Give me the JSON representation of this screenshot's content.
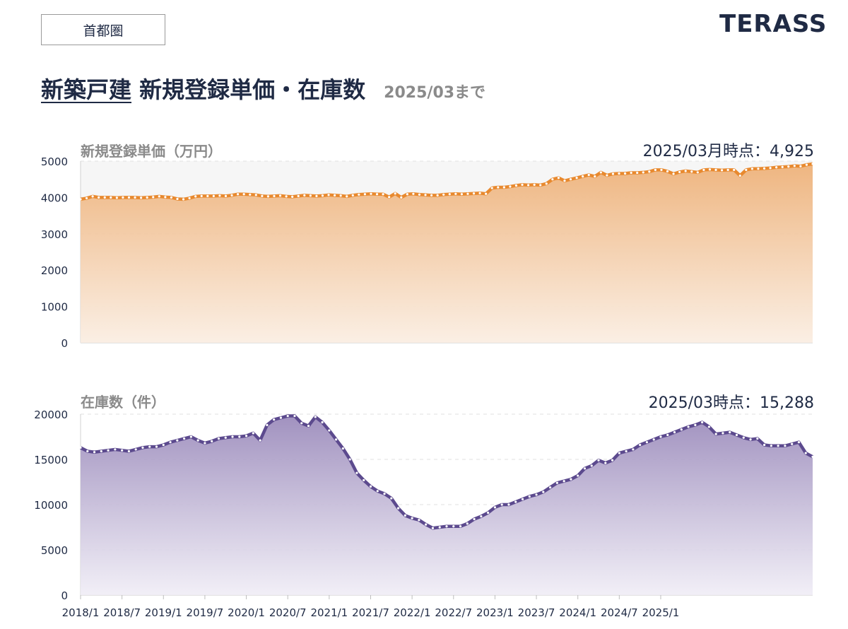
{
  "header": {
    "region": "首都圏",
    "logo": "TERASS",
    "title_underlined": "新築戸建",
    "title_rest": " 新規登録単価・在庫数",
    "subtitle": "2025/03まで"
  },
  "colors": {
    "price_line": "#e8892e",
    "price_fill": "#f2c08e",
    "stock_line": "#5c4a8e",
    "stock_fill": "#a898c4",
    "text_dark": "#1f2a44",
    "text_gray": "#8a8a8a"
  },
  "chart_data": [
    {
      "type": "area",
      "title": "新規登録単価（万円）",
      "stat": "2025/03月時点：4,925",
      "ylim": [
        0,
        5000
      ],
      "yticks": [
        "0",
        "1000",
        "2000",
        "3000",
        "4000",
        "5000"
      ],
      "grid": true,
      "x_start": "2018/1",
      "x_end": "2025/3",
      "values": [
        3950,
        3980,
        4030,
        4000,
        4000,
        4000,
        3990,
        4000,
        4000,
        4000,
        3990,
        4000,
        4010,
        4030,
        4010,
        4000,
        3960,
        3950,
        3980,
        4030,
        4040,
        4040,
        4040,
        4050,
        4040,
        4060,
        4090,
        4090,
        4080,
        4070,
        4040,
        4030,
        4040,
        4050,
        4030,
        4020,
        4040,
        4060,
        4050,
        4040,
        4050,
        4070,
        4060,
        4050,
        4030,
        4060,
        4080,
        4090,
        4100,
        4090,
        4090,
        4010,
        4110,
        4000,
        4090,
        4100,
        4080,
        4070,
        4060,
        4060,
        4080,
        4090,
        4100,
        4090,
        4100,
        4110,
        4120,
        4100,
        4260,
        4280,
        4280,
        4300,
        4330,
        4350,
        4340,
        4350,
        4340,
        4380,
        4500,
        4540,
        4460,
        4500,
        4540,
        4580,
        4620,
        4580,
        4690,
        4610,
        4650,
        4660,
        4660,
        4680,
        4680,
        4690,
        4710,
        4760,
        4760,
        4720,
        4650,
        4700,
        4730,
        4710,
        4690,
        4760,
        4770,
        4760,
        4750,
        4760,
        4760,
        4600,
        4760,
        4790,
        4790,
        4800,
        4810,
        4830,
        4840,
        4850,
        4870,
        4860,
        4900,
        4925
      ]
    },
    {
      "type": "area",
      "title": "在庫数（件）",
      "stat": "2025/03時点：15,288",
      "ylim": [
        0,
        20000
      ],
      "yticks": [
        "0",
        "5000",
        "10000",
        "15000",
        "20000"
      ],
      "grid": true,
      "x_start": "2018/1",
      "x_end": "2025/3",
      "xticks": [
        "2018/1",
        "2018/7",
        "2019/1",
        "2019/7",
        "2020/1",
        "2020/7",
        "2021/1",
        "2021/7",
        "2022/1",
        "2022/7",
        "2023/1",
        "2023/7",
        "2024/1",
        "2024/7",
        "2025/1"
      ],
      "values": [
        16300,
        15900,
        15800,
        15900,
        16000,
        16100,
        16000,
        15900,
        16100,
        16300,
        16400,
        16400,
        16600,
        16900,
        17100,
        17300,
        17500,
        17100,
        16800,
        17000,
        17300,
        17400,
        17500,
        17500,
        17600,
        17900,
        17100,
        18800,
        19400,
        19600,
        19800,
        19800,
        19000,
        18700,
        19700,
        19100,
        18200,
        17200,
        16200,
        15000,
        13500,
        12700,
        12000,
        11500,
        11200,
        10700,
        9600,
        8800,
        8500,
        8300,
        7800,
        7400,
        7500,
        7600,
        7600,
        7600,
        7900,
        8400,
        8700,
        9100,
        9700,
        10000,
        10000,
        10300,
        10600,
        10900,
        11100,
        11400,
        11900,
        12400,
        12600,
        12800,
        13200,
        14000,
        14300,
        14900,
        14600,
        14900,
        15700,
        15900,
        16100,
        16600,
        16900,
        17200,
        17500,
        17700,
        18000,
        18300,
        18600,
        18800,
        19100,
        18600,
        17800,
        17900,
        18000,
        17700,
        17400,
        17200,
        17300,
        16600,
        16500,
        16500,
        16500,
        16700,
        16900,
        15700,
        15288
      ]
    }
  ]
}
